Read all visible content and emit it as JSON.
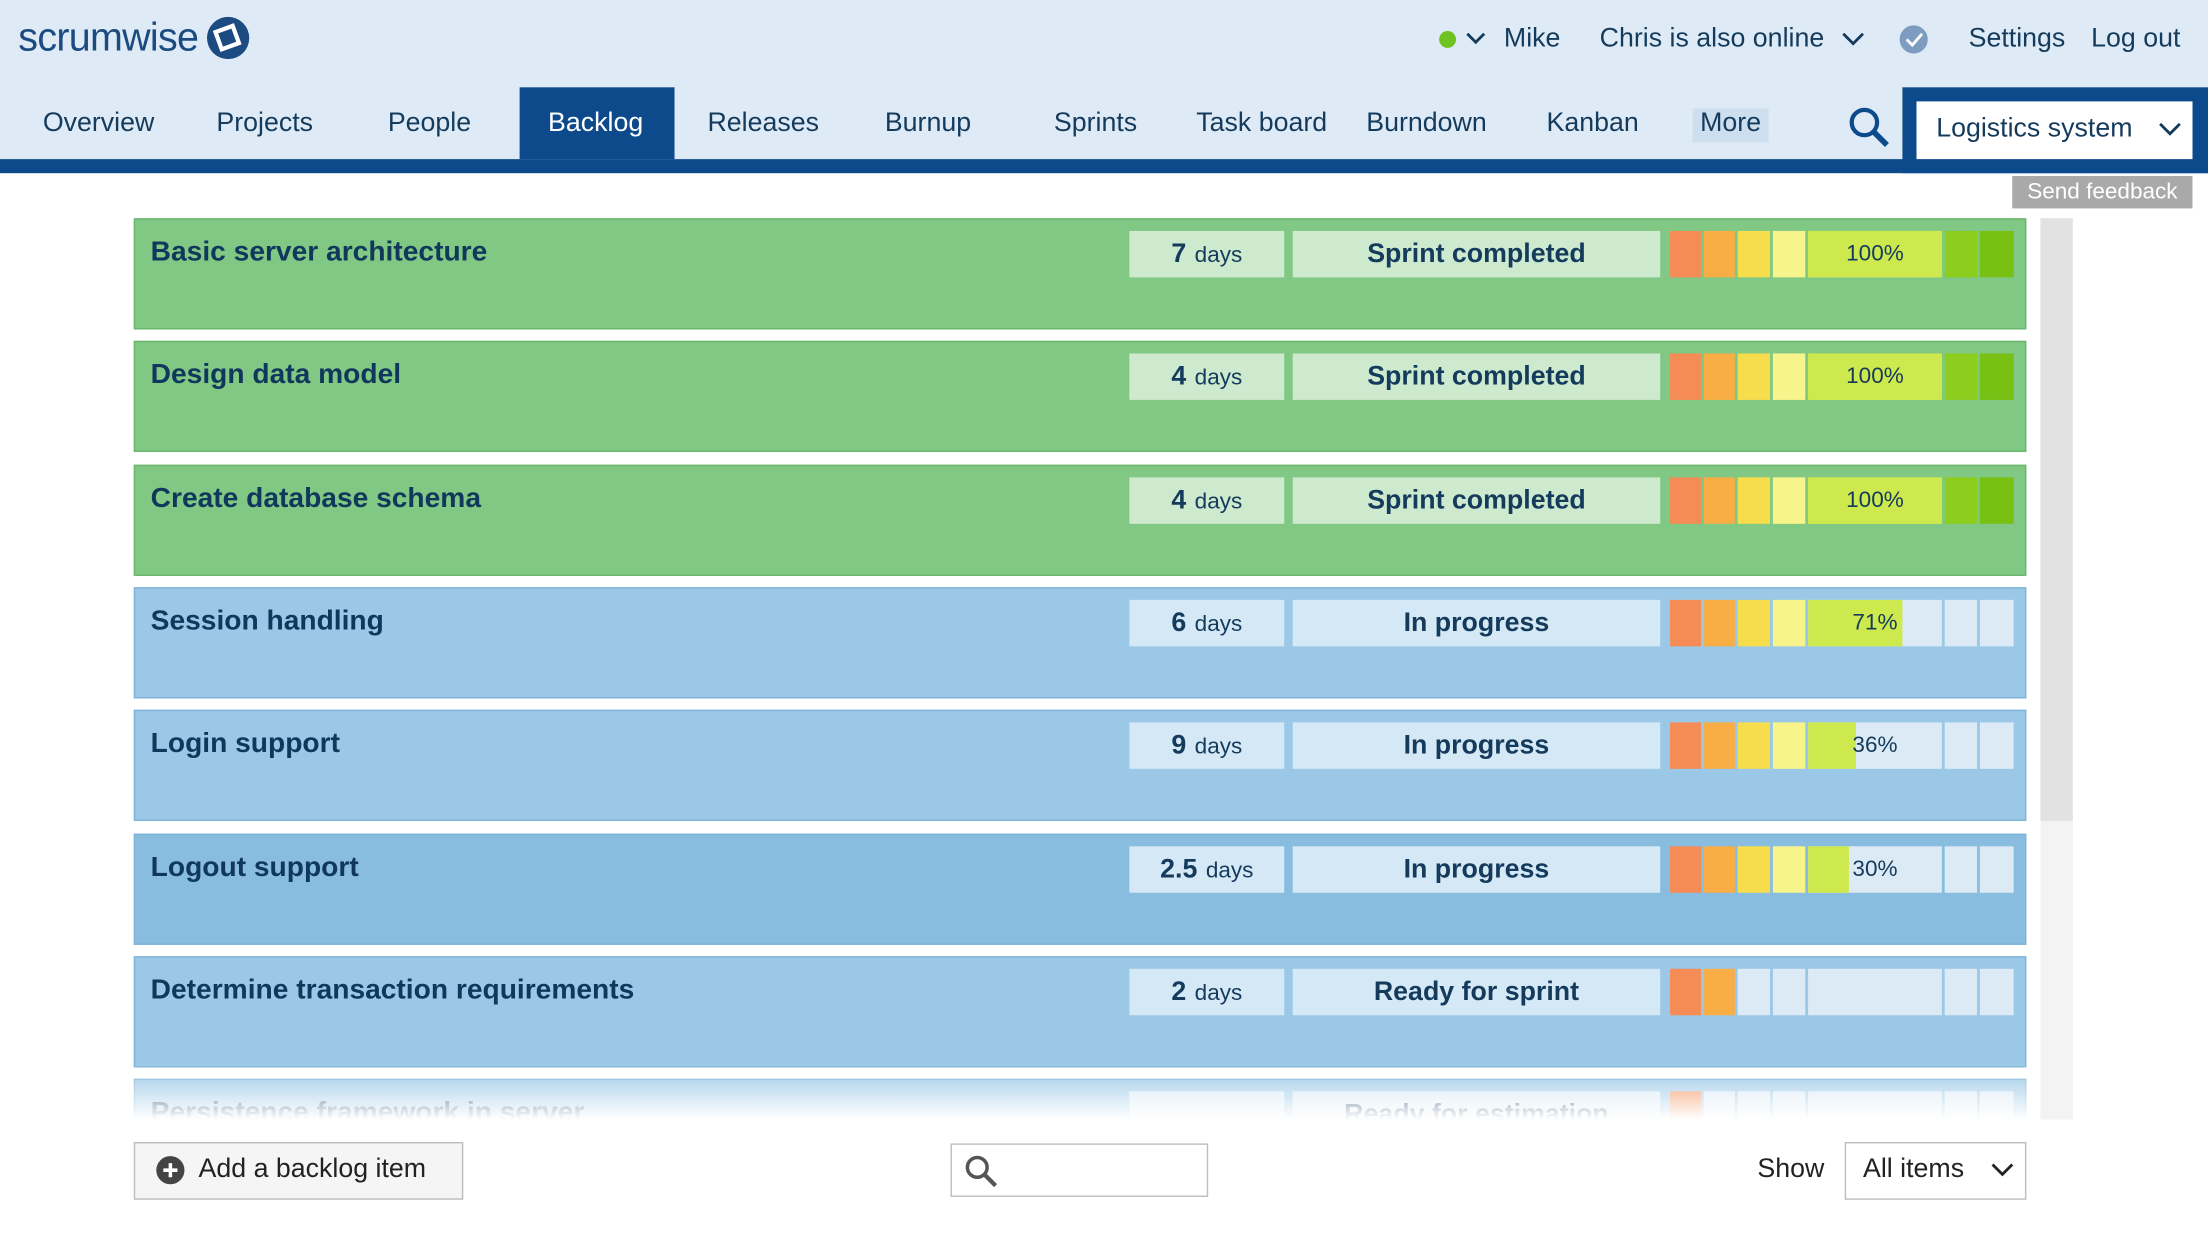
{
  "header": {
    "logo": "scrumwise",
    "user": "Mike",
    "online": "Chris is also online",
    "settings": "Settings",
    "logout": "Log out"
  },
  "nav": {
    "items": [
      "Overview",
      "Projects",
      "People",
      "Backlog",
      "Releases",
      "Burnup",
      "Sprints",
      "Task board",
      "Burndown",
      "Kanban",
      "More"
    ],
    "active": "Backlog",
    "project": "Logistics system"
  },
  "feedback": "Send feedback",
  "backlog": {
    "estimate_unit": "days",
    "rows": [
      {
        "title": "Basic server architecture",
        "estimate": 7,
        "status": "Sprint completed",
        "stage": 7,
        "progress": 100,
        "progress_label": "100%"
      },
      {
        "title": "Design data model",
        "estimate": 4,
        "status": "Sprint completed",
        "stage": 7,
        "progress": 100,
        "progress_label": "100%"
      },
      {
        "title": "Create database schema",
        "estimate": 4,
        "status": "Sprint completed",
        "stage": 7,
        "progress": 100,
        "progress_label": "100%"
      },
      {
        "title": "Session handling",
        "estimate": 6,
        "status": "In progress",
        "stage": 4,
        "progress": 71,
        "progress_label": "71%"
      },
      {
        "title": "Login support",
        "estimate": 9,
        "status": "In progress",
        "stage": 4,
        "progress": 36,
        "progress_label": "36%"
      },
      {
        "title": "Logout support",
        "estimate": 2.5,
        "status": "In progress",
        "stage": 4,
        "progress": 30,
        "progress_label": "30%"
      },
      {
        "title": "Determine transaction requirements",
        "estimate": 2,
        "status": "Ready for sprint",
        "stage": 2
      },
      {
        "title": "Persistence framework in server",
        "status": "Ready for estimation",
        "stage": 1
      }
    ]
  },
  "footer": {
    "add": "Add a backlog item",
    "show": "Show",
    "filter": "All items"
  }
}
